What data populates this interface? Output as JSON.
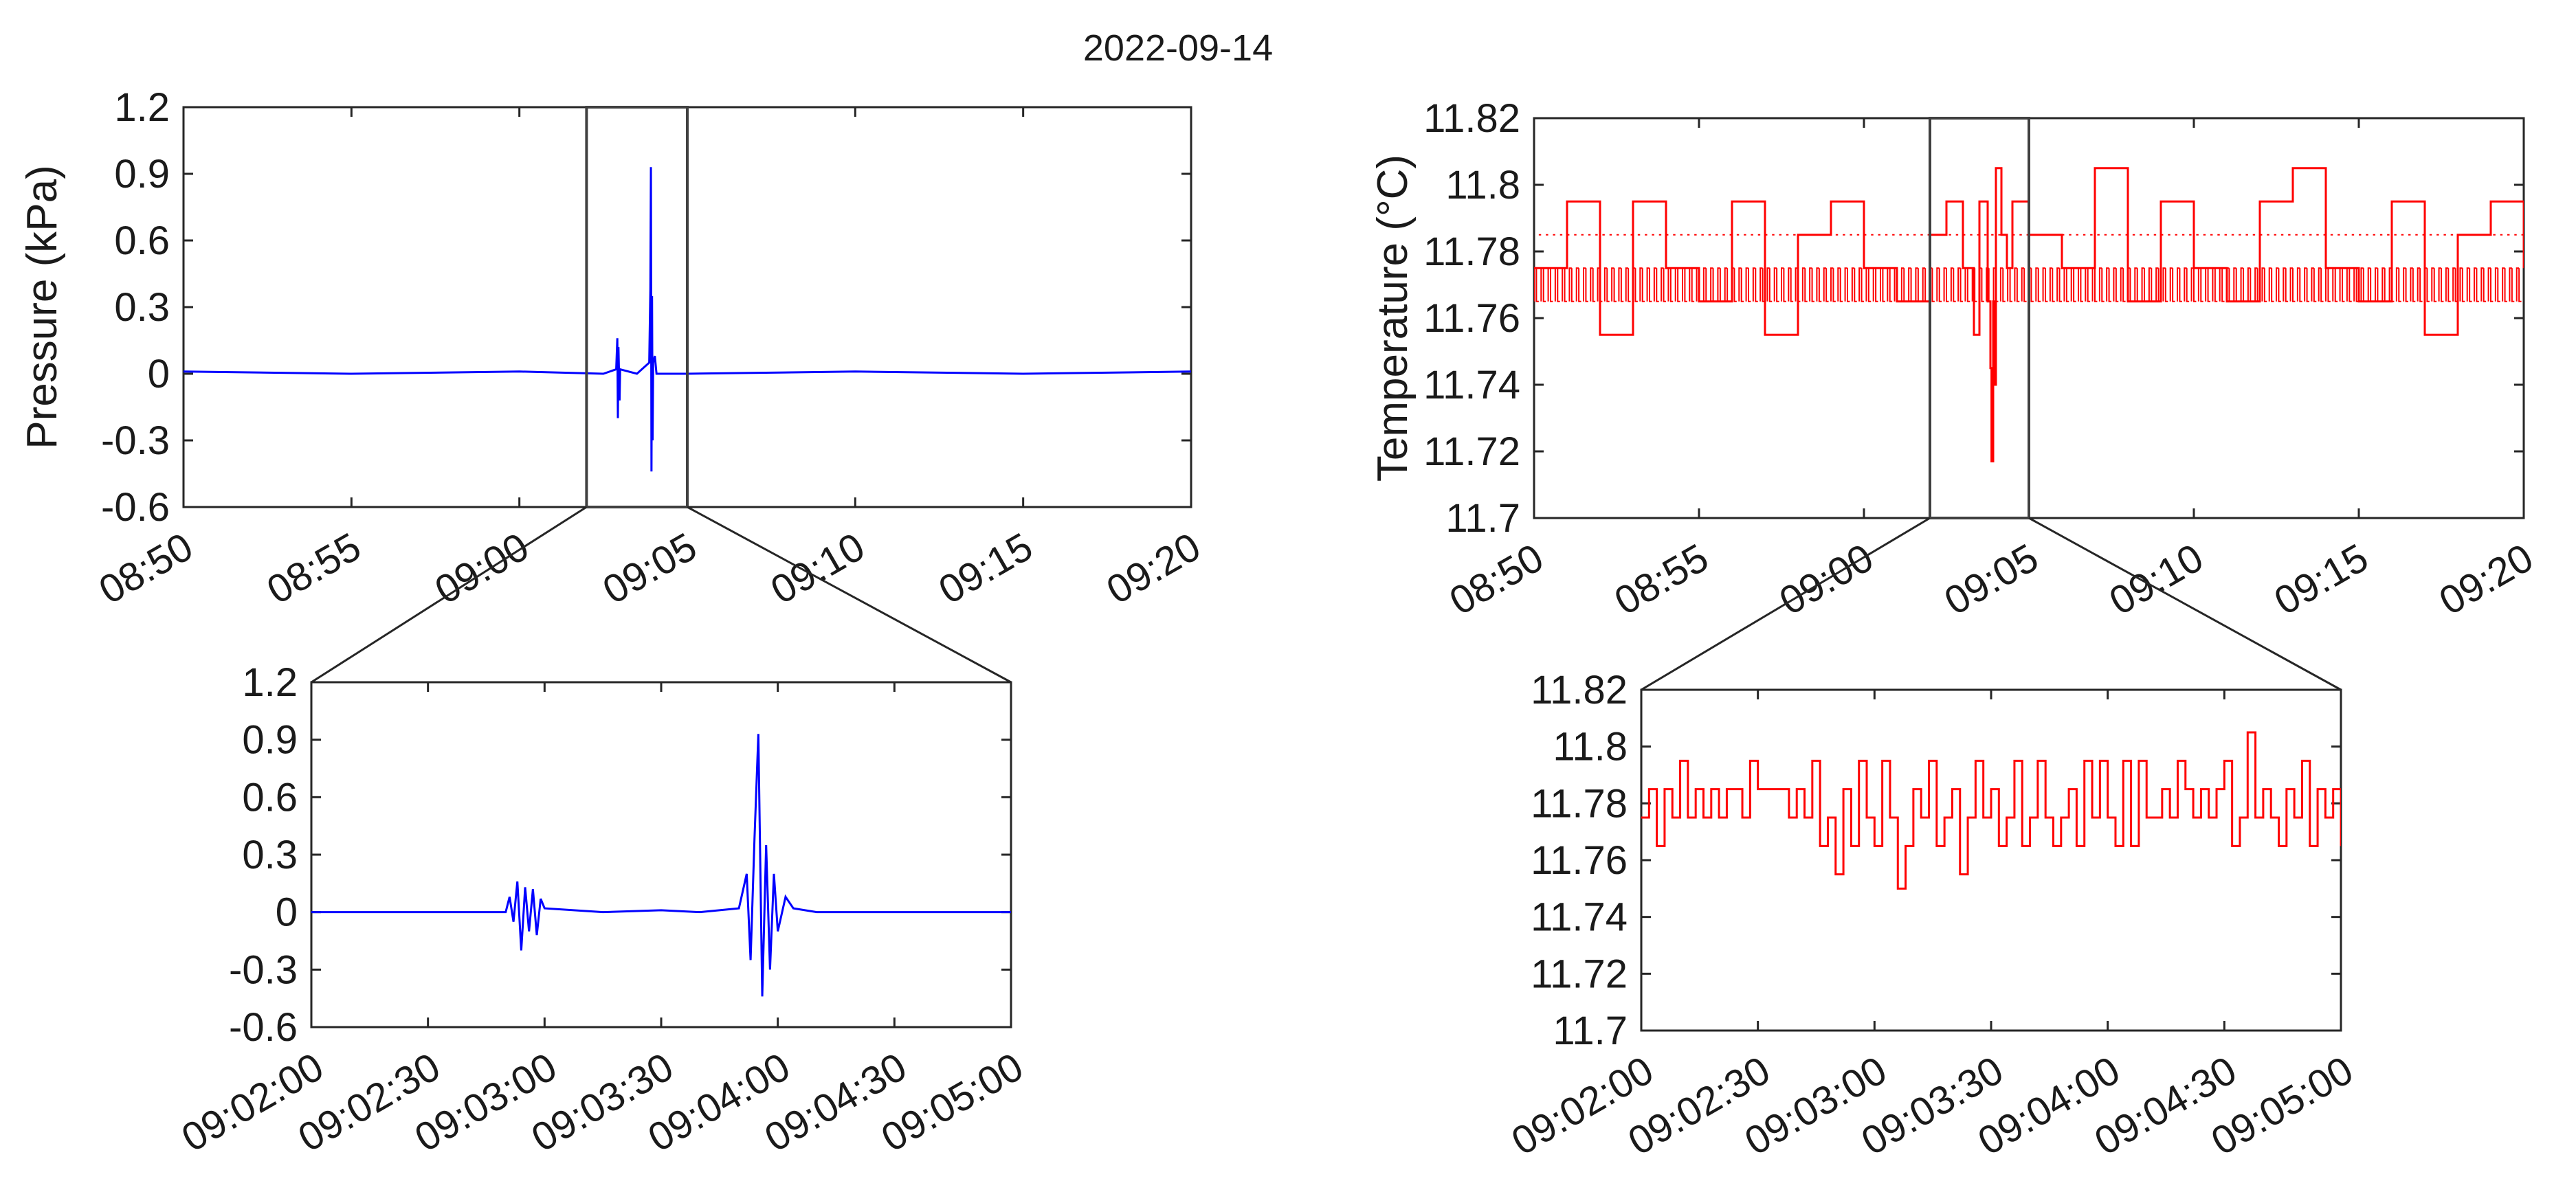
{
  "figure": {
    "title": "2022-09-14",
    "colors": {
      "pressure": "#0000ff",
      "temperature": "#ff0000",
      "axes": "#262626",
      "zoom_box": "#404040"
    }
  },
  "chart_data": [
    {
      "id": "pressure-main",
      "type": "line",
      "xlabel": "",
      "ylabel": "Pressure (kPa)",
      "x_unit": "time",
      "xlim": [
        "08:50:00",
        "09:20:00"
      ],
      "xticks": [
        "08:50",
        "08:55",
        "09:00",
        "09:05",
        "09:10",
        "09:15",
        "09:20"
      ],
      "ylim": [
        -0.6,
        1.2
      ],
      "yticks": [
        "1.2",
        "0.9",
        "0.6",
        "0.3",
        "0",
        "-0.3",
        "-0.6"
      ],
      "zoom_window": [
        "09:02:00",
        "09:05:00"
      ],
      "series": [
        {
          "color": "#0000ff",
          "x": [
            "08:50:00",
            "08:55:00",
            "09:00:00",
            "09:02:30",
            "09:02:53",
            "09:02:55",
            "09:02:56",
            "09:02:57",
            "09:02:59",
            "09:03:00",
            "09:03:30",
            "09:03:52",
            "09:03:54",
            "09:03:55",
            "09:03:56",
            "09:03:57",
            "09:03:58",
            "09:03:59",
            "09:04:02",
            "09:04:05",
            "09:04:30",
            "09:05:00",
            "09:10:00",
            "09:15:00",
            "09:20:00"
          ],
          "y": [
            0.01,
            0.0,
            0.01,
            0.0,
            0.02,
            0.16,
            -0.2,
            0.12,
            -0.12,
            0.02,
            0.0,
            0.05,
            0.38,
            0.93,
            -0.44,
            0.35,
            -0.3,
            0.05,
            0.08,
            0.0,
            0.0,
            0.0,
            0.01,
            0.0,
            0.01
          ]
        }
      ]
    },
    {
      "id": "pressure-zoom",
      "type": "line",
      "xlabel": "",
      "ylabel": "",
      "x_unit": "time",
      "xlim": [
        "09:02:00",
        "09:05:00"
      ],
      "xticks": [
        "09:02:00",
        "09:02:30",
        "09:03:00",
        "09:03:30",
        "09:04:00",
        "09:04:30",
        "09:05:00"
      ],
      "ylim": [
        -0.6,
        1.2
      ],
      "yticks": [
        "1.2",
        "0.9",
        "0.6",
        "0.3",
        "0",
        "-0.3",
        "-0.6"
      ],
      "series": [
        {
          "color": "#0000ff",
          "x": [
            "09:02:00",
            "09:02:30",
            "09:02:50",
            "09:02:51",
            "09:02:52",
            "09:02:53",
            "09:02:54",
            "09:02:55",
            "09:02:56",
            "09:02:57",
            "09:02:58",
            "09:02:59",
            "09:03:00",
            "09:03:15",
            "09:03:30",
            "09:03:40",
            "09:03:50",
            "09:03:52",
            "09:03:53",
            "09:03:54",
            "09:03:55",
            "09:03:56",
            "09:03:57",
            "09:03:58",
            "09:03:59",
            "09:04:00",
            "09:04:02",
            "09:04:04",
            "09:04:10",
            "09:04:30",
            "09:05:00"
          ],
          "y": [
            0.0,
            0.0,
            0.0,
            0.08,
            -0.05,
            0.16,
            -0.2,
            0.13,
            -0.1,
            0.12,
            -0.12,
            0.07,
            0.02,
            0.0,
            0.01,
            0.0,
            0.02,
            0.2,
            -0.25,
            0.38,
            0.93,
            -0.44,
            0.35,
            -0.3,
            0.2,
            -0.1,
            0.08,
            0.02,
            0.0,
            0.0,
            0.0
          ]
        }
      ]
    },
    {
      "id": "temperature-main",
      "type": "line",
      "xlabel": "",
      "ylabel": "Temperature (°C)",
      "x_unit": "time",
      "xlim": [
        "08:50:00",
        "09:20:00"
      ],
      "xticks": [
        "08:50",
        "08:55",
        "09:00",
        "09:05",
        "09:10",
        "09:15",
        "09:20"
      ],
      "ylim": [
        11.7,
        11.82
      ],
      "yticks": [
        "11.82",
        "11.8",
        "11.78",
        "11.76",
        "11.74",
        "11.72",
        "11.7"
      ],
      "zoom_window": [
        "09:02:00",
        "09:05:00"
      ],
      "baseline": [
        11.765,
        11.775,
        11.785
      ],
      "series": [
        {
          "color": "#ff0000",
          "x": [
            "08:50:00",
            "08:51:00",
            "08:52:00",
            "08:53:00",
            "08:54:00",
            "08:55:00",
            "08:56:00",
            "08:57:00",
            "08:58:00",
            "08:59:00",
            "09:00:00",
            "09:01:00",
            "09:02:00",
            "09:02:30",
            "09:03:00",
            "09:03:20",
            "09:03:30",
            "09:03:45",
            "09:03:50",
            "09:03:52",
            "09:03:55",
            "09:03:58",
            "09:04:00",
            "09:04:10",
            "09:04:20",
            "09:04:30",
            "09:05:00",
            "09:06:00",
            "09:07:00",
            "09:08:00",
            "09:09:00",
            "09:10:00",
            "09:11:00",
            "09:12:00",
            "09:13:00",
            "09:14:00",
            "09:15:00",
            "09:16:00",
            "09:17:00",
            "09:18:00",
            "09:19:00",
            "09:20:00"
          ],
          "y": [
            11.775,
            11.795,
            11.755,
            11.795,
            11.775,
            11.765,
            11.795,
            11.755,
            11.785,
            11.795,
            11.775,
            11.765,
            11.785,
            11.795,
            11.775,
            11.755,
            11.795,
            11.765,
            11.745,
            11.717,
            11.765,
            11.74,
            11.805,
            11.785,
            11.775,
            11.795,
            11.785,
            11.775,
            11.805,
            11.765,
            11.795,
            11.775,
            11.765,
            11.795,
            11.805,
            11.775,
            11.765,
            11.795,
            11.755,
            11.785,
            11.795,
            11.775
          ]
        }
      ]
    },
    {
      "id": "temperature-zoom",
      "type": "line",
      "xlabel": "",
      "ylabel": "",
      "x_unit": "time",
      "xlim": [
        "09:02:00",
        "09:05:00"
      ],
      "xticks": [
        "09:02:00",
        "09:02:30",
        "09:03:00",
        "09:03:30",
        "09:04:00",
        "09:04:30",
        "09:05:00"
      ],
      "ylim": [
        11.7,
        11.82
      ],
      "yticks": [
        "11.82",
        "11.8",
        "11.78",
        "11.76",
        "11.74",
        "11.72",
        "11.7"
      ],
      "series": [
        {
          "color": "#ff0000",
          "x": [
            "09:02:00",
            "09:02:02",
            "09:02:04",
            "09:02:06",
            "09:02:08",
            "09:02:10",
            "09:02:12",
            "09:02:14",
            "09:02:16",
            "09:02:18",
            "09:02:20",
            "09:02:22",
            "09:02:24",
            "09:02:26",
            "09:02:28",
            "09:02:30",
            "09:02:32",
            "09:02:34",
            "09:02:36",
            "09:02:38",
            "09:02:40",
            "09:02:42",
            "09:02:44",
            "09:02:46",
            "09:02:48",
            "09:02:50",
            "09:02:52",
            "09:02:54",
            "09:02:56",
            "09:02:58",
            "09:03:00",
            "09:03:02",
            "09:03:04",
            "09:03:06",
            "09:03:08",
            "09:03:10",
            "09:03:12",
            "09:03:14",
            "09:03:16",
            "09:03:18",
            "09:03:20",
            "09:03:22",
            "09:03:24",
            "09:03:26",
            "09:03:28",
            "09:03:30",
            "09:03:32",
            "09:03:34",
            "09:03:36",
            "09:03:38",
            "09:03:40",
            "09:03:42",
            "09:03:44",
            "09:03:46",
            "09:03:48",
            "09:03:50",
            "09:03:52",
            "09:03:54",
            "09:03:56",
            "09:03:58",
            "09:04:00",
            "09:04:02",
            "09:04:04",
            "09:04:06",
            "09:04:08",
            "09:04:10",
            "09:04:12",
            "09:04:14",
            "09:04:16",
            "09:04:18",
            "09:04:20",
            "09:04:22",
            "09:04:24",
            "09:04:26",
            "09:04:28",
            "09:04:30",
            "09:04:32",
            "09:04:34",
            "09:04:36",
            "09:04:38",
            "09:04:40",
            "09:04:42",
            "09:04:44",
            "09:04:46",
            "09:04:48",
            "09:04:50",
            "09:04:52",
            "09:04:54",
            "09:04:56",
            "09:04:58",
            "09:05:00"
          ],
          "y": [
            11.775,
            11.785,
            11.765,
            11.785,
            11.775,
            11.795,
            11.775,
            11.785,
            11.775,
            11.785,
            11.775,
            11.785,
            11.785,
            11.775,
            11.795,
            11.785,
            11.785,
            11.785,
            11.785,
            11.775,
            11.785,
            11.775,
            11.795,
            11.765,
            11.775,
            11.755,
            11.785,
            11.765,
            11.795,
            11.775,
            11.765,
            11.795,
            11.775,
            11.75,
            11.765,
            11.785,
            11.775,
            11.795,
            11.765,
            11.775,
            11.785,
            11.755,
            11.775,
            11.795,
            11.775,
            11.785,
            11.765,
            11.775,
            11.795,
            11.765,
            11.775,
            11.795,
            11.775,
            11.765,
            11.775,
            11.785,
            11.765,
            11.795,
            11.775,
            11.795,
            11.775,
            11.765,
            11.795,
            11.765,
            11.795,
            11.775,
            11.775,
            11.785,
            11.775,
            11.795,
            11.785,
            11.775,
            11.785,
            11.775,
            11.785,
            11.795,
            11.765,
            11.775,
            11.805,
            11.775,
            11.785,
            11.775,
            11.765,
            11.785,
            11.775,
            11.795,
            11.765,
            11.785,
            11.775,
            11.785,
            11.765
          ]
        }
      ]
    }
  ]
}
